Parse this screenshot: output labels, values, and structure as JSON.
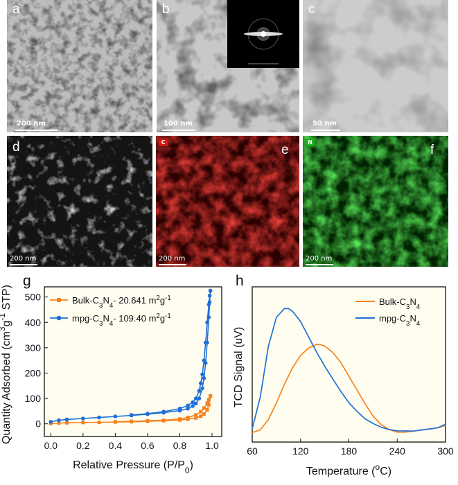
{
  "panels": {
    "a": {
      "letter": "a",
      "scalebar": "200 nm"
    },
    "b": {
      "letter": "b",
      "scalebar": "100 nm"
    },
    "c": {
      "letter": "c",
      "scalebar": "50 nm"
    },
    "d": {
      "letter": "d",
      "scalebar": "200 nm"
    },
    "e": {
      "letter": "e",
      "scalebar": "200 nm",
      "tag": "C"
    },
    "f": {
      "letter": "f",
      "scalebar": "200 nm",
      "tag": "N"
    },
    "g": {
      "letter": "g"
    },
    "h": {
      "letter": "h"
    }
  },
  "colors": {
    "orange": "#f5821f",
    "blue": "#1f6fd6",
    "red_map": "#c8140f",
    "green_map": "#1eb21e",
    "bg_cream": "#fffdf0"
  },
  "chart_data": [
    {
      "type": "line",
      "panel": "g",
      "xlabel": "Relative Pressure (P/P0)",
      "ylabel": "Quantity Adsorbed (cm3g-1 STP)",
      "xlim": [
        -0.04,
        1.06
      ],
      "ylim": [
        -50,
        540
      ],
      "xticks": [
        "0.0",
        "0.2",
        "0.4",
        "0.6",
        "0.8",
        "1.0"
      ],
      "yticks": [
        "0",
        "100",
        "200",
        "300",
        "400",
        "500"
      ],
      "legend_position": "top-left",
      "series": [
        {
          "name": "Bulk-C3N4- 20.641 m2g-1",
          "color": "#f5821f",
          "marker": "square",
          "adsorption": {
            "x": [
              0.0,
              0.05,
              0.1,
              0.2,
              0.3,
              0.4,
              0.5,
              0.6,
              0.7,
              0.8,
              0.85,
              0.9,
              0.93,
              0.95,
              0.97,
              0.98,
              0.99
            ],
            "y": [
              1,
              3,
              4,
              5,
              6,
              7,
              8,
              10,
              12,
              15,
              18,
              23,
              30,
              38,
              55,
              75,
              110
            ]
          },
          "desorption": {
            "x": [
              0.99,
              0.98,
              0.97,
              0.95,
              0.93,
              0.9,
              0.85,
              0.8,
              0.7,
              0.6,
              0.5,
              0.4
            ],
            "y": [
              110,
              95,
              82,
              62,
              48,
              35,
              25,
              19,
              14,
              12,
              10,
              8
            ]
          }
        },
        {
          "name": "mpg-C3N4- 109.40 m2g-1",
          "color": "#1f6fd6",
          "marker": "circle",
          "adsorption": {
            "x": [
              0.0,
              0.05,
              0.1,
              0.2,
              0.3,
              0.4,
              0.5,
              0.6,
              0.7,
              0.8,
              0.85,
              0.88,
              0.9,
              0.92,
              0.94,
              0.95,
              0.96,
              0.97,
              0.98,
              0.985,
              0.99
            ],
            "y": [
              8,
              14,
              17,
              21,
              25,
              29,
              33,
              38,
              44,
              52,
              60,
              70,
              80,
              100,
              140,
              180,
              240,
              320,
              420,
              480,
              525
            ]
          },
          "desorption": {
            "x": [
              0.99,
              0.985,
              0.98,
              0.97,
              0.96,
              0.95,
              0.94,
              0.93,
              0.92,
              0.9,
              0.88,
              0.85,
              0.8,
              0.7,
              0.6,
              0.5
            ],
            "y": [
              525,
              505,
              470,
              400,
              320,
              250,
              195,
              160,
              130,
              100,
              85,
              72,
              60,
              48,
              40,
              35
            ]
          }
        }
      ]
    },
    {
      "type": "line",
      "panel": "h",
      "xlabel": "Temperature (oC)",
      "ylabel": "TCD Signal (uV)",
      "xlim": [
        60,
        300
      ],
      "xticks": [
        "60",
        "120",
        "180",
        "240",
        "300"
      ],
      "legend_position": "top-right",
      "series": [
        {
          "name": "Bulk-C3N4",
          "color": "#f5821f",
          "x": [
            60,
            70,
            80,
            90,
            100,
            110,
            120,
            130,
            140,
            145,
            150,
            160,
            170,
            180,
            190,
            200,
            210,
            220,
            230,
            240,
            250,
            260,
            270,
            280,
            290,
            300
          ],
          "y": [
            0.02,
            0.04,
            0.12,
            0.25,
            0.4,
            0.53,
            0.63,
            0.69,
            0.72,
            0.72,
            0.71,
            0.66,
            0.58,
            0.47,
            0.36,
            0.25,
            0.15,
            0.08,
            0.04,
            0.02,
            0.02,
            0.03,
            0.04,
            0.05,
            0.06,
            0.08
          ]
        },
        {
          "name": "mpg-C3N4",
          "color": "#1f6fd6",
          "x": [
            60,
            70,
            80,
            90,
            100,
            105,
            110,
            120,
            130,
            140,
            150,
            160,
            170,
            180,
            190,
            200,
            210,
            220,
            230,
            240,
            250,
            260,
            270,
            280,
            290,
            300
          ],
          "y": [
            0.05,
            0.3,
            0.7,
            0.93,
            1.0,
            1.0,
            0.98,
            0.9,
            0.78,
            0.66,
            0.55,
            0.45,
            0.35,
            0.26,
            0.19,
            0.13,
            0.09,
            0.06,
            0.04,
            0.03,
            0.03,
            0.03,
            0.04,
            0.05,
            0.06,
            0.09
          ]
        }
      ]
    }
  ]
}
